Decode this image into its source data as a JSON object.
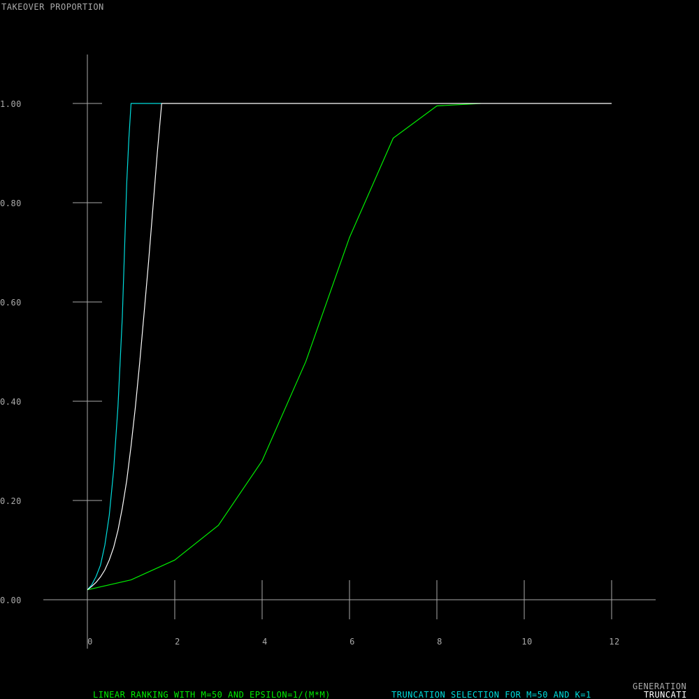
{
  "chart_data": {
    "type": "line",
    "ylabel": "TAKEOVER PROPORTION",
    "xlabel": "GENERATION",
    "xlim": [
      0,
      12
    ],
    "ylim": [
      0,
      1
    ],
    "x_ticks": [
      "0",
      "2",
      "4",
      "6",
      "8",
      "10",
      "12"
    ],
    "y_ticks": [
      "0.00",
      "0.20",
      "0.40",
      "0.60",
      "0.80",
      "1.00"
    ],
    "grid": false,
    "legend_position": "bottom",
    "series": [
      {
        "name": "LINEAR RANKING WITH M=50 AND EPSILON=1/(M*M)",
        "color": "#00ee00",
        "x": [
          0,
          1,
          2,
          3,
          4,
          5,
          6,
          7,
          8,
          9
        ],
        "y": [
          0.02,
          0.04,
          0.08,
          0.15,
          0.28,
          0.48,
          0.73,
          0.93,
          0.995,
          1.0
        ]
      },
      {
        "name": "TRUNCATION SELECTION FOR M=50 AND K=1",
        "color": "#00dddd",
        "x": [
          0,
          0.1,
          0.2,
          0.3,
          0.4,
          0.5,
          0.6,
          0.7,
          0.8,
          0.9,
          0.95,
          1.0,
          1.7
        ],
        "y": [
          0.02,
          0.03,
          0.047,
          0.07,
          0.11,
          0.17,
          0.26,
          0.39,
          0.57,
          0.84,
          0.93,
          1.0,
          1.0
        ]
      },
      {
        "name": "TRUNCATI",
        "color": "#ffffff",
        "x": [
          0,
          0.1,
          0.2,
          0.3,
          0.4,
          0.5,
          0.6,
          0.7,
          0.8,
          0.9,
          1.0,
          1.1,
          1.2,
          1.3,
          1.4,
          1.5,
          1.6,
          1.7,
          12
        ],
        "y": [
          0.02,
          0.027,
          0.035,
          0.046,
          0.06,
          0.08,
          0.105,
          0.14,
          0.185,
          0.24,
          0.31,
          0.39,
          0.48,
          0.58,
          0.68,
          0.79,
          0.9,
          1.0,
          1.0
        ]
      }
    ]
  }
}
